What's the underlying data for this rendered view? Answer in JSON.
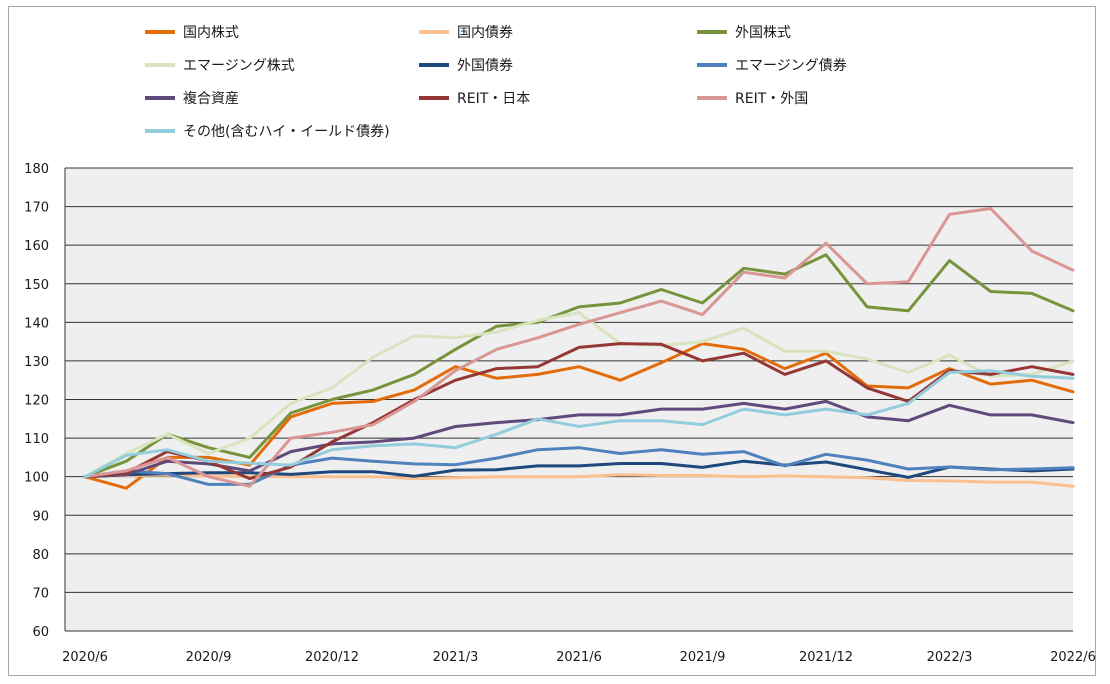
{
  "chart_data": {
    "type": "line",
    "title": "",
    "xlabel": "",
    "ylabel": "",
    "ylim": [
      60,
      180
    ],
    "yticks": [
      60,
      70,
      80,
      90,
      100,
      110,
      120,
      130,
      140,
      150,
      160,
      170,
      180
    ],
    "grid": "horizontal",
    "legend_position": "top",
    "x": [
      "2020/6",
      "2020/7",
      "2020/8",
      "2020/9",
      "2020/10",
      "2020/11",
      "2020/12",
      "2021/1",
      "2021/2",
      "2021/3",
      "2021/4",
      "2021/5",
      "2021/6",
      "2021/7",
      "2021/8",
      "2021/9",
      "2021/10",
      "2021/11",
      "2021/12",
      "2022/1",
      "2022/2",
      "2022/3",
      "2022/4",
      "2022/5",
      "2022/6"
    ],
    "xtick_labels": [
      "2020/6",
      "2020/9",
      "2020/12",
      "2021/3",
      "2021/6",
      "2021/9",
      "2021/12",
      "2022/3",
      "2022/6"
    ],
    "series": [
      {
        "name": "国内株式",
        "color": "#E36C0A",
        "values": [
          100,
          97,
          105,
          105,
          103,
          115.5,
          119,
          119.5,
          122.5,
          128.5,
          125.5,
          126.5,
          128.5,
          125,
          129.5,
          134.5,
          133,
          128,
          132,
          123.5,
          123,
          128,
          124,
          125,
          122
        ]
      },
      {
        "name": "国内債券",
        "color": "#FAC090",
        "values": [
          100,
          100.3,
          100.4,
          100.2,
          100,
          100,
          100,
          100,
          99.5,
          99.7,
          100,
          100,
          100,
          100.5,
          100.3,
          100.3,
          100,
          100.2,
          100,
          99.7,
          99,
          98.9,
          98.6,
          98.6,
          97.5
        ]
      },
      {
        "name": "外国株式",
        "color": "#77933C",
        "values": [
          100,
          104,
          111,
          107.5,
          105,
          116.5,
          120,
          122.5,
          126.5,
          133,
          139,
          140,
          144,
          145,
          148.5,
          145,
          154,
          152.5,
          157.5,
          144,
          143,
          156,
          148,
          147.5,
          143
        ]
      },
      {
        "name": "エマージング株式",
        "color": "#D7E4BD",
        "values": [
          100,
          106,
          111,
          106,
          110,
          119,
          123,
          131,
          136.5,
          136,
          137.5,
          140.5,
          142.5,
          134.5,
          134,
          135,
          138.5,
          132.5,
          132.5,
          130.5,
          127,
          131.5,
          126,
          126.5,
          130
        ]
      },
      {
        "name": "外国債券",
        "color": "#1F497D",
        "values": [
          100,
          100.5,
          100.8,
          101,
          101,
          100.6,
          101.3,
          101.3,
          100.1,
          101.7,
          101.8,
          102.8,
          102.8,
          103.4,
          103.4,
          102.4,
          104,
          103,
          103.8,
          101.8,
          99.8,
          102.5,
          102,
          101.5,
          102
        ]
      },
      {
        "name": "エマージング債券",
        "color": "#4F81BD",
        "values": [
          100,
          101.5,
          100.8,
          98,
          98,
          103,
          104.8,
          104,
          103.3,
          103.1,
          104.8,
          107,
          107.5,
          106,
          107,
          105.8,
          106.5,
          102.8,
          105.8,
          104.3,
          102,
          102.5,
          101.8,
          102,
          102.3
        ]
      },
      {
        "name": "複合資産",
        "color": "#604A7B",
        "values": [
          100,
          100.5,
          104,
          103.3,
          101.5,
          106.5,
          108.5,
          109,
          110,
          113,
          114,
          114.8,
          116,
          116,
          117.5,
          117.5,
          119,
          117.5,
          119.5,
          115.5,
          114.5,
          118.5,
          116,
          116,
          114
        ]
      },
      {
        "name": "REIT・日本",
        "color": "#953735",
        "values": [
          100,
          101,
          106.5,
          104,
          99.5,
          102.5,
          109,
          114,
          120,
          125,
          128,
          128.5,
          133.5,
          134.5,
          134.3,
          130,
          132,
          126.5,
          130,
          123,
          119.5,
          127.5,
          126.5,
          128.5,
          126.5
        ]
      },
      {
        "name": "REIT・外国",
        "color": "#D99694",
        "values": [
          100,
          101.5,
          105,
          100,
          97.5,
          110,
          111.5,
          113.5,
          119.5,
          127.5,
          133,
          136,
          139.5,
          142.5,
          145.5,
          142,
          153,
          151.5,
          160.5,
          150,
          150.5,
          168,
          169.5,
          158.5,
          153.5
        ]
      },
      {
        "name": "その他(含むハイ・イールド債券)",
        "color": "#93CDDD",
        "values": [
          100,
          105.5,
          107,
          104,
          103.5,
          103,
          107,
          108,
          108.5,
          107.5,
          111,
          115,
          113,
          114.5,
          114.5,
          113.5,
          117.5,
          116,
          117.5,
          116,
          119,
          127,
          127.5,
          126,
          125.5
        ]
      }
    ]
  }
}
